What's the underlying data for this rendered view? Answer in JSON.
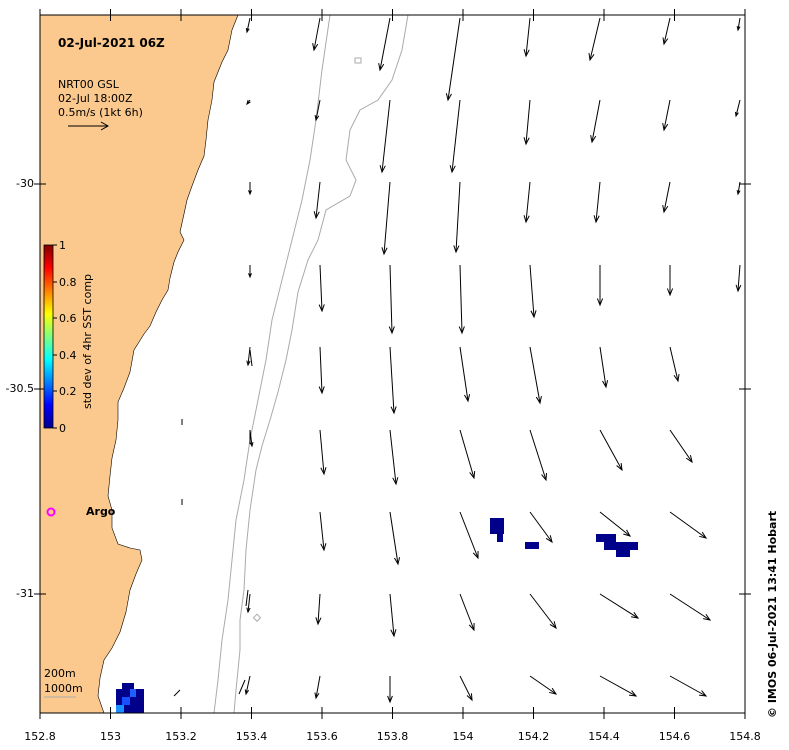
{
  "map": {
    "timestamp": "02-Jul-2021 06Z",
    "current_product": "NRT00 GSL",
    "current_time": "02-Jul 18:00Z",
    "vector_scale": "0.5m/s (1kt 6h)",
    "argo_label": "Argo",
    "credit": "© IMOS 06-Jul-2021 13:41 Hobart",
    "contour_200": "200m",
    "contour_1000": "1000m",
    "lon_ticks": [
      "152.8",
      "153",
      "153.2",
      "153.4",
      "153.6",
      "153.8",
      "154",
      "154.2",
      "154.4",
      "154.6",
      "154.8"
    ],
    "lat_ticks": [
      "-30",
      "-30.5",
      "-31"
    ],
    "lon_range": [
      152.8,
      154.8
    ],
    "lat_range": [
      -29.6,
      -31.3
    ],
    "land_color": "#fbc98e",
    "argo_color": "#ff00ff",
    "vector_color": "#000000",
    "contour_color": "#aaaaaa",
    "colorbar": {
      "label": "std dev of 4hr SST comp",
      "ticks": [
        "1",
        "0.8",
        "0.6",
        "0.4",
        "0.2",
        "0"
      ],
      "colormap": "jet"
    }
  }
}
